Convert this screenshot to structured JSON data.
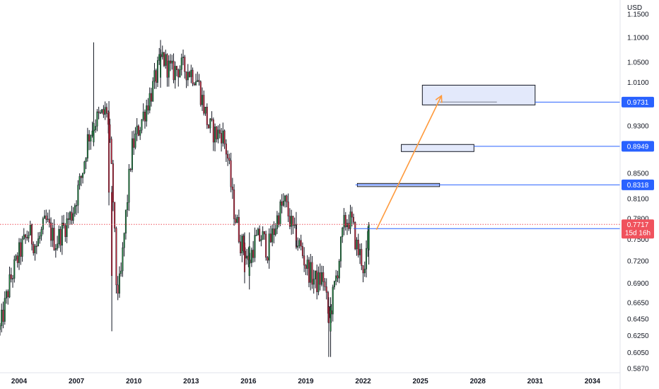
{
  "chart_data": {
    "type": "candlestick",
    "currency_label": "USD",
    "y_ticks": [
      "1.1500",
      "1.1000",
      "1.0500",
      "1.0100",
      "0.9300",
      "0.8500",
      "0.8100",
      "0.7800",
      "0.7500",
      "0.7200",
      "0.6900",
      "0.6650",
      "0.6450",
      "0.6250",
      "0.6050",
      "0.5870"
    ],
    "x_ticks": [
      "2004",
      "2007",
      "2010",
      "2013",
      "2016",
      "2019",
      "2022",
      "2025",
      "2028",
      "2031",
      "2034"
    ],
    "x_range": [
      2003.0,
      2035.3
    ],
    "ylim": [
      0.587,
      1.15
    ],
    "y_scale": "log",
    "candle_anchors": [
      [
        2003.0,
        0.632
      ],
      [
        2003.5,
        0.69
      ],
      [
        2004.0,
        0.73
      ],
      [
        2004.5,
        0.76
      ],
      [
        2004.9,
        0.74
      ],
      [
        2005.4,
        0.775
      ],
      [
        2005.9,
        0.745
      ],
      [
        2006.3,
        0.765
      ],
      [
        2006.8,
        0.79
      ],
      [
        2007.3,
        0.85
      ],
      [
        2007.6,
        0.91
      ],
      [
        2008.0,
        0.94
      ],
      [
        2008.4,
        0.95
      ],
      [
        2008.6,
        0.96
      ],
      [
        2008.9,
        0.82
      ],
      [
        2009.1,
        0.68
      ],
      [
        2009.3,
        0.69
      ],
      [
        2009.6,
        0.79
      ],
      [
        2009.9,
        0.89
      ],
      [
        2010.3,
        0.93
      ],
      [
        2010.6,
        0.96
      ],
      [
        2011.0,
        1.0
      ],
      [
        2011.3,
        1.04
      ],
      [
        2011.5,
        1.06
      ],
      [
        2011.8,
        1.04
      ],
      [
        2012.0,
        1.03
      ],
      [
        2012.4,
        1.04
      ],
      [
        2012.8,
        1.035
      ],
      [
        2013.0,
        1.03
      ],
      [
        2013.3,
        1.02
      ],
      [
        2013.6,
        0.975
      ],
      [
        2013.9,
        0.93
      ],
      [
        2014.3,
        0.915
      ],
      [
        2014.6,
        0.92
      ],
      [
        2014.9,
        0.88
      ],
      [
        2015.2,
        0.8
      ],
      [
        2015.6,
        0.745
      ],
      [
        2015.9,
        0.73
      ],
      [
        2016.0,
        0.715
      ],
      [
        2016.3,
        0.745
      ],
      [
        2016.7,
        0.755
      ],
      [
        2017.0,
        0.735
      ],
      [
        2017.3,
        0.76
      ],
      [
        2017.6,
        0.79
      ],
      [
        2017.9,
        0.805
      ],
      [
        2018.1,
        0.785
      ],
      [
        2018.4,
        0.755
      ],
      [
        2018.7,
        0.74
      ],
      [
        2019.0,
        0.715
      ],
      [
        2019.3,
        0.7
      ],
      [
        2019.6,
        0.69
      ],
      [
        2019.9,
        0.7
      ],
      [
        2020.2,
        0.645
      ],
      [
        2020.4,
        0.67
      ],
      [
        2020.7,
        0.715
      ],
      [
        2021.0,
        0.77
      ],
      [
        2021.2,
        0.78
      ],
      [
        2021.4,
        0.775
      ],
      [
        2021.7,
        0.735
      ],
      [
        2021.9,
        0.725
      ],
      [
        2022.1,
        0.7
      ],
      [
        2022.3,
        0.7717
      ]
    ],
    "extra_candles": [
      {
        "x": 2007.9,
        "o": 0.902,
        "h": 1.09,
        "l": 0.895,
        "c": 0.935,
        "up": true
      },
      {
        "x": 2008.7,
        "o": 0.955,
        "h": 0.975,
        "l": 0.8,
        "c": 0.82,
        "up": false
      },
      {
        "x": 2008.85,
        "o": 0.82,
        "h": 0.83,
        "l": 0.63,
        "c": 0.7,
        "up": false
      },
      {
        "x": 2011.4,
        "o": 1.02,
        "h": 1.095,
        "l": 1.0,
        "c": 1.06,
        "up": true
      },
      {
        "x": 2015.8,
        "o": 0.745,
        "h": 0.76,
        "l": 0.69,
        "c": 0.705,
        "up": false
      },
      {
        "x": 2016.05,
        "o": 0.7,
        "h": 0.76,
        "l": 0.682,
        "c": 0.74,
        "up": true
      },
      {
        "x": 2018.5,
        "o": 0.765,
        "h": 0.79,
        "l": 0.74,
        "c": 0.748,
        "up": false
      },
      {
        "x": 2020.2,
        "o": 0.66,
        "h": 0.672,
        "l": 0.6,
        "c": 0.64,
        "up": false
      },
      {
        "x": 2020.3,
        "o": 0.63,
        "h": 0.672,
        "l": 0.6,
        "c": 0.66,
        "up": true
      },
      {
        "x": 2022.3,
        "o": 0.735,
        "h": 0.775,
        "l": 0.715,
        "c": 0.7717,
        "up": true
      }
    ],
    "zones": [
      {
        "x0": 2021.7,
        "x1": 2026.0,
        "y0": 0.829,
        "y1": 0.834
      },
      {
        "x0": 2024.0,
        "x1": 2027.8,
        "y0": 0.886,
        "y1": 0.898
      },
      {
        "x0": 2025.1,
        "x1": 2031.0,
        "y0": 0.968,
        "y1": 1.005
      }
    ],
    "zone_midline": {
      "x0": 2026.0,
      "x1": 2029.0,
      "y": 0.9735
    },
    "horizontal_levels": [
      {
        "label": "0.9731",
        "x_start": 2031.0,
        "y": 0.9731
      },
      {
        "label": "0.8949",
        "x_start": 2027.8,
        "y": 0.8949
      },
      {
        "label": "0.8318",
        "x_start": 2021.6,
        "y": 0.8318
      },
      {
        "label": "",
        "x_start": 2021.5,
        "y": 0.7655
      }
    ],
    "projection_arrow": {
      "x0": 2022.7,
      "y0": 0.764,
      "x1": 2026.1,
      "y1": 0.985
    },
    "current_price": {
      "label": "0.7717",
      "countdown": "15d 16h",
      "y": 0.7717
    },
    "colors": {
      "up": "#1e7d3a",
      "down": "#c2263a",
      "wick": "#131722",
      "level": "#2962ff",
      "zone_fill": "#e3e9fb",
      "arrow": "#ff9a3c",
      "price_tag": "#f0525d",
      "current_line": "#f0525d",
      "axis_text": "#131722"
    }
  }
}
